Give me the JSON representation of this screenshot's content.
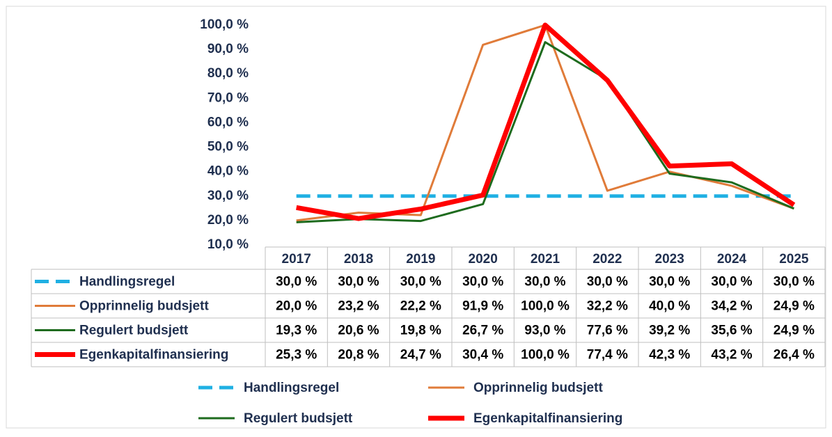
{
  "chart_data": {
    "type": "line",
    "categories": [
      "2017",
      "2018",
      "2019",
      "2020",
      "2021",
      "2022",
      "2023",
      "2024",
      "2025"
    ],
    "ylim": [
      10,
      100
    ],
    "yticks": [
      {
        "value": 10,
        "label": "10,0 %"
      },
      {
        "value": 20,
        "label": "20,0 %"
      },
      {
        "value": 30,
        "label": "30,0 %"
      },
      {
        "value": 40,
        "label": "40,0 %"
      },
      {
        "value": 50,
        "label": "50,0 %"
      },
      {
        "value": 60,
        "label": "60,0 %"
      },
      {
        "value": 70,
        "label": "70,0 %"
      },
      {
        "value": 80,
        "label": "80,0 %"
      },
      {
        "value": 90,
        "label": "90,0 %"
      },
      {
        "value": 100,
        "label": "100,0 %"
      }
    ],
    "grid": false,
    "legend": "bottom",
    "series": [
      {
        "name": "Handlingsregel",
        "color": "#1fb0e3",
        "dashed": true,
        "width": 5,
        "values": [
          30,
          30,
          30,
          30,
          30,
          30,
          30,
          30,
          30
        ],
        "value_labels": [
          "30,0 %",
          "30,0 %",
          "30,0 %",
          "30,0 %",
          "30,0 %",
          "30,0 %",
          "30,0 %",
          "30,0 %",
          "30,0 %"
        ]
      },
      {
        "name": "Opprinnelig budsjett",
        "color": "#e07b39",
        "dashed": false,
        "width": 3,
        "values": [
          20.0,
          23.2,
          22.2,
          91.9,
          100.0,
          32.2,
          40.0,
          34.2,
          24.9
        ],
        "value_labels": [
          "20,0 %",
          "23,2 %",
          "22,2 %",
          "91,9 %",
          "100,0 %",
          "32,2 %",
          "40,0 %",
          "34,2 %",
          "24,9 %"
        ]
      },
      {
        "name": "Regulert budsjett",
        "color": "#1e6b1e",
        "dashed": false,
        "width": 3,
        "values": [
          19.3,
          20.6,
          19.8,
          26.7,
          93.0,
          77.6,
          39.2,
          35.6,
          24.9
        ],
        "value_labels": [
          "19,3 %",
          "20,6 %",
          "19,8 %",
          "26,7 %",
          "93,0 %",
          "77,6 %",
          "39,2 %",
          "35,6 %",
          "24,9 %"
        ]
      },
      {
        "name": "Egenkapitalfinansiering",
        "color": "#ff0000",
        "dashed": false,
        "width": 7,
        "values": [
          25.3,
          20.8,
          24.7,
          30.4,
          100.0,
          77.4,
          42.3,
          43.2,
          26.4
        ],
        "value_labels": [
          "25,3 %",
          "20,8 %",
          "24,7 %",
          "30,4 %",
          "100,0 %",
          "77,4 %",
          "42,3 %",
          "43,2 %",
          "26,4 %"
        ]
      }
    ]
  }
}
